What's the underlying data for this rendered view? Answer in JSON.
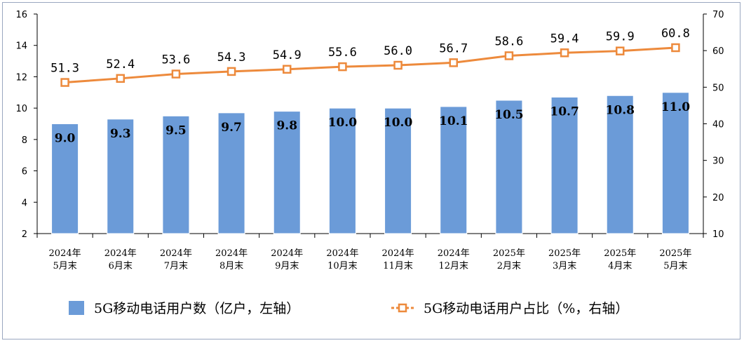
{
  "chart_data": {
    "type": "bar",
    "categories": [
      [
        "2024年",
        "5月末"
      ],
      [
        "2024年",
        "6月末"
      ],
      [
        "2024年",
        "7月末"
      ],
      [
        "2024年",
        "8月末"
      ],
      [
        "2024年",
        "9月末"
      ],
      [
        "2024年",
        "10月末"
      ],
      [
        "2024年",
        "11月末"
      ],
      [
        "2024年",
        "12月末"
      ],
      [
        "2025年",
        "2月末"
      ],
      [
        "2025年",
        "3月末"
      ],
      [
        "2025年",
        "4月末"
      ],
      [
        "2025年",
        "5月末"
      ]
    ],
    "series": [
      {
        "name": "5G移动电话用户数（亿户，左轴）",
        "type": "bar",
        "axis": "left",
        "color": "#6b9bd8",
        "values": [
          9.0,
          9.3,
          9.5,
          9.7,
          9.8,
          10.0,
          10.0,
          10.1,
          10.5,
          10.7,
          10.8,
          11.0
        ],
        "labels": [
          "9.0",
          "9.3",
          "9.5",
          "9.7",
          "9.8",
          "10.0",
          "10.0",
          "10.1",
          "10.5",
          "10.7",
          "10.8",
          "11.0"
        ]
      },
      {
        "name": "5G移动电话用户占比（%，右轴）",
        "type": "line",
        "axis": "right",
        "color": "#ed8a3c",
        "values": [
          51.3,
          52.4,
          53.6,
          54.3,
          54.9,
          55.6,
          56.0,
          56.7,
          58.6,
          59.4,
          59.9,
          60.8
        ],
        "labels": [
          "51.3",
          "52.4",
          "53.6",
          "54.3",
          "54.9",
          "55.6",
          "56.0",
          "56.7",
          "58.6",
          "59.4",
          "59.9",
          "60.8"
        ]
      }
    ],
    "y_left": {
      "min": 2,
      "max": 16,
      "ticks": [
        "2",
        "4",
        "6",
        "8",
        "10",
        "12",
        "14",
        "16"
      ]
    },
    "y_right": {
      "min": 10,
      "max": 70,
      "ticks": [
        "10",
        "20",
        "30",
        "40",
        "50",
        "60",
        "70"
      ]
    },
    "grid": false,
    "legend_position": "bottom"
  }
}
